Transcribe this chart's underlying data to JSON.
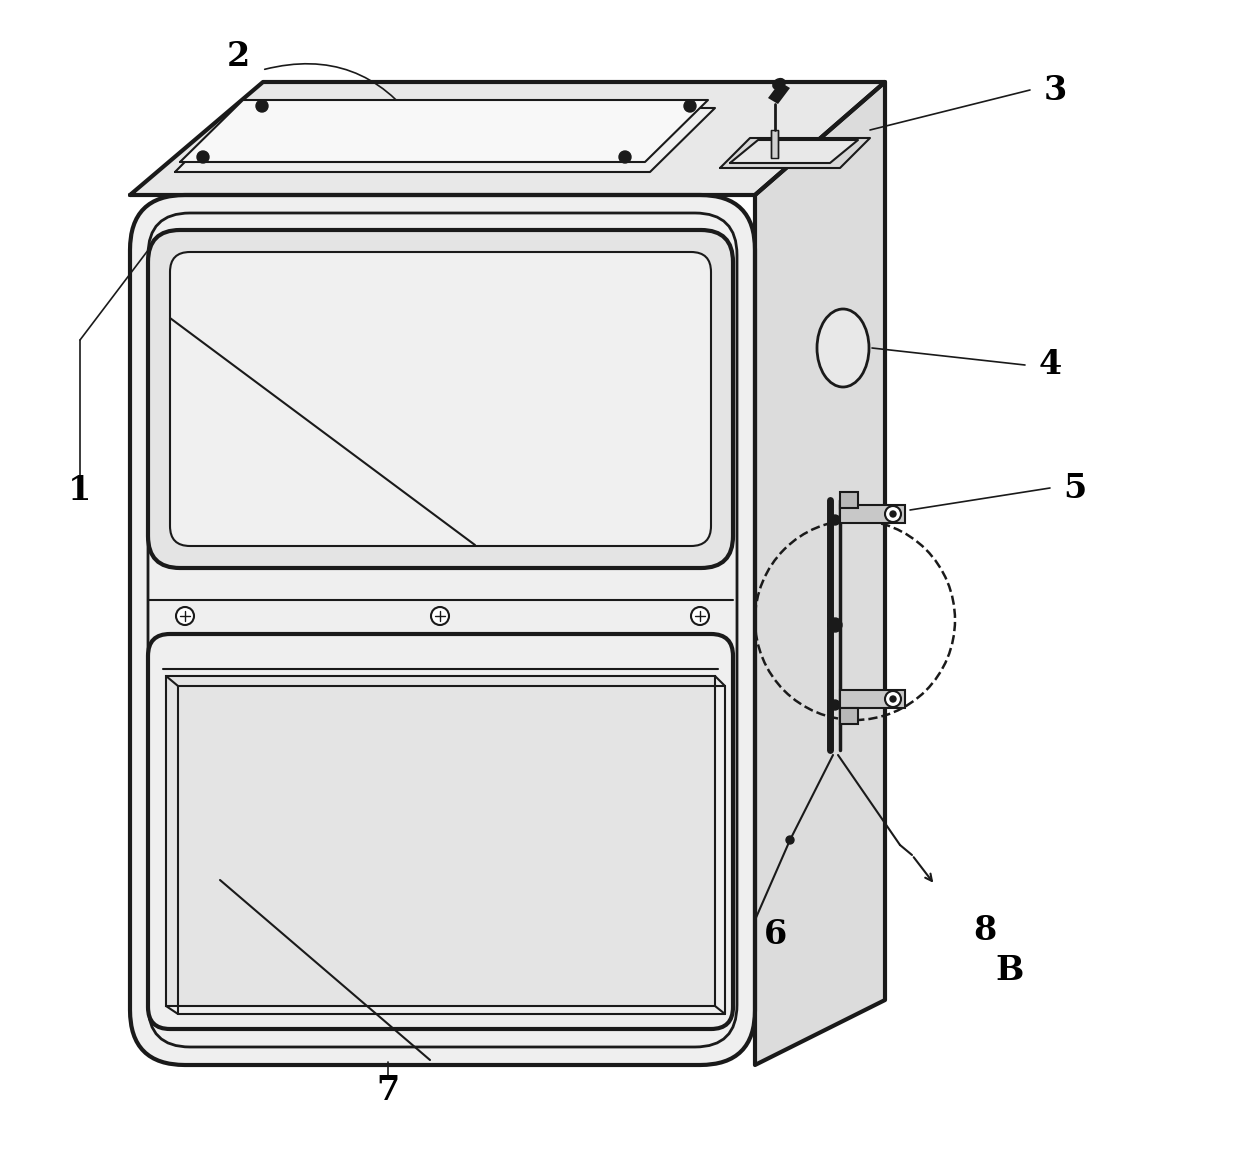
{
  "bg_color": "#ffffff",
  "line_color": "#1a1a1a",
  "label_color": "#000000",
  "figure_width": 12.4,
  "figure_height": 11.75,
  "front_face_color": "#efefef",
  "top_face_color": "#e8e8e8",
  "right_face_color": "#dcdcdc",
  "window_color": "#e8e8e8",
  "drawer_color": "#e8e8e8"
}
